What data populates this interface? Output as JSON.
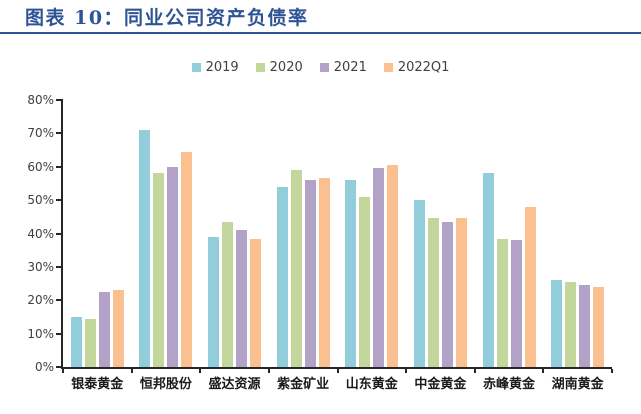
{
  "header": {
    "title": "图表 10：同业公司资产负债率"
  },
  "colors": {
    "title": "#2F5496",
    "rule": "#2F5496",
    "axis": "#262626",
    "y_tick_label": "#404040",
    "x_label": "#1a1a1a",
    "legend_label": "#404040"
  },
  "chart_data": {
    "type": "bar",
    "title": "同业公司资产负债率",
    "categories": [
      "银泰黄金",
      "恒邦股份",
      "盛达资源",
      "紫金矿业",
      "山东黄金",
      "中金黄金",
      "赤峰黄金",
      "湖南黄金"
    ],
    "series": [
      {
        "name": "2019",
        "color": "#92CDDC",
        "values": [
          15,
          71,
          39,
          54,
          56,
          50,
          58,
          26
        ]
      },
      {
        "name": "2020",
        "color": "#C3D69B",
        "values": [
          14.5,
          58,
          43.5,
          59,
          51,
          44.5,
          38.5,
          25.5
        ]
      },
      {
        "name": "2021",
        "color": "#B3A2C7",
        "values": [
          22.5,
          60,
          41,
          56,
          59.5,
          43.5,
          38,
          24.5
        ]
      },
      {
        "name": "2022Q1",
        "color": "#FAC090",
        "values": [
          23,
          64.5,
          38.5,
          56.5,
          60.5,
          44.5,
          48,
          24
        ]
      }
    ],
    "ylim": [
      0,
      80
    ],
    "y_ticks": [
      "0%",
      "10%",
      "20%",
      "30%",
      "40%",
      "50%",
      "60%",
      "70%",
      "80%"
    ],
    "grid": false,
    "legend_position": "top-center",
    "ylabel": "",
    "xlabel": ""
  }
}
